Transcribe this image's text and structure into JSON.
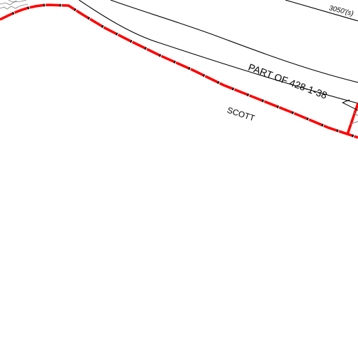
{
  "map": {
    "labels": {
      "parcel_id": "PART OF 428-1-38",
      "owner_name": "SCOTT",
      "dimension": "3050'(s)"
    },
    "colors": {
      "background": "#ffffff",
      "boundary": "#ff0000",
      "boundary_tick": "#000000",
      "linework": "#000000",
      "secondary_linework": "#808080"
    }
  }
}
